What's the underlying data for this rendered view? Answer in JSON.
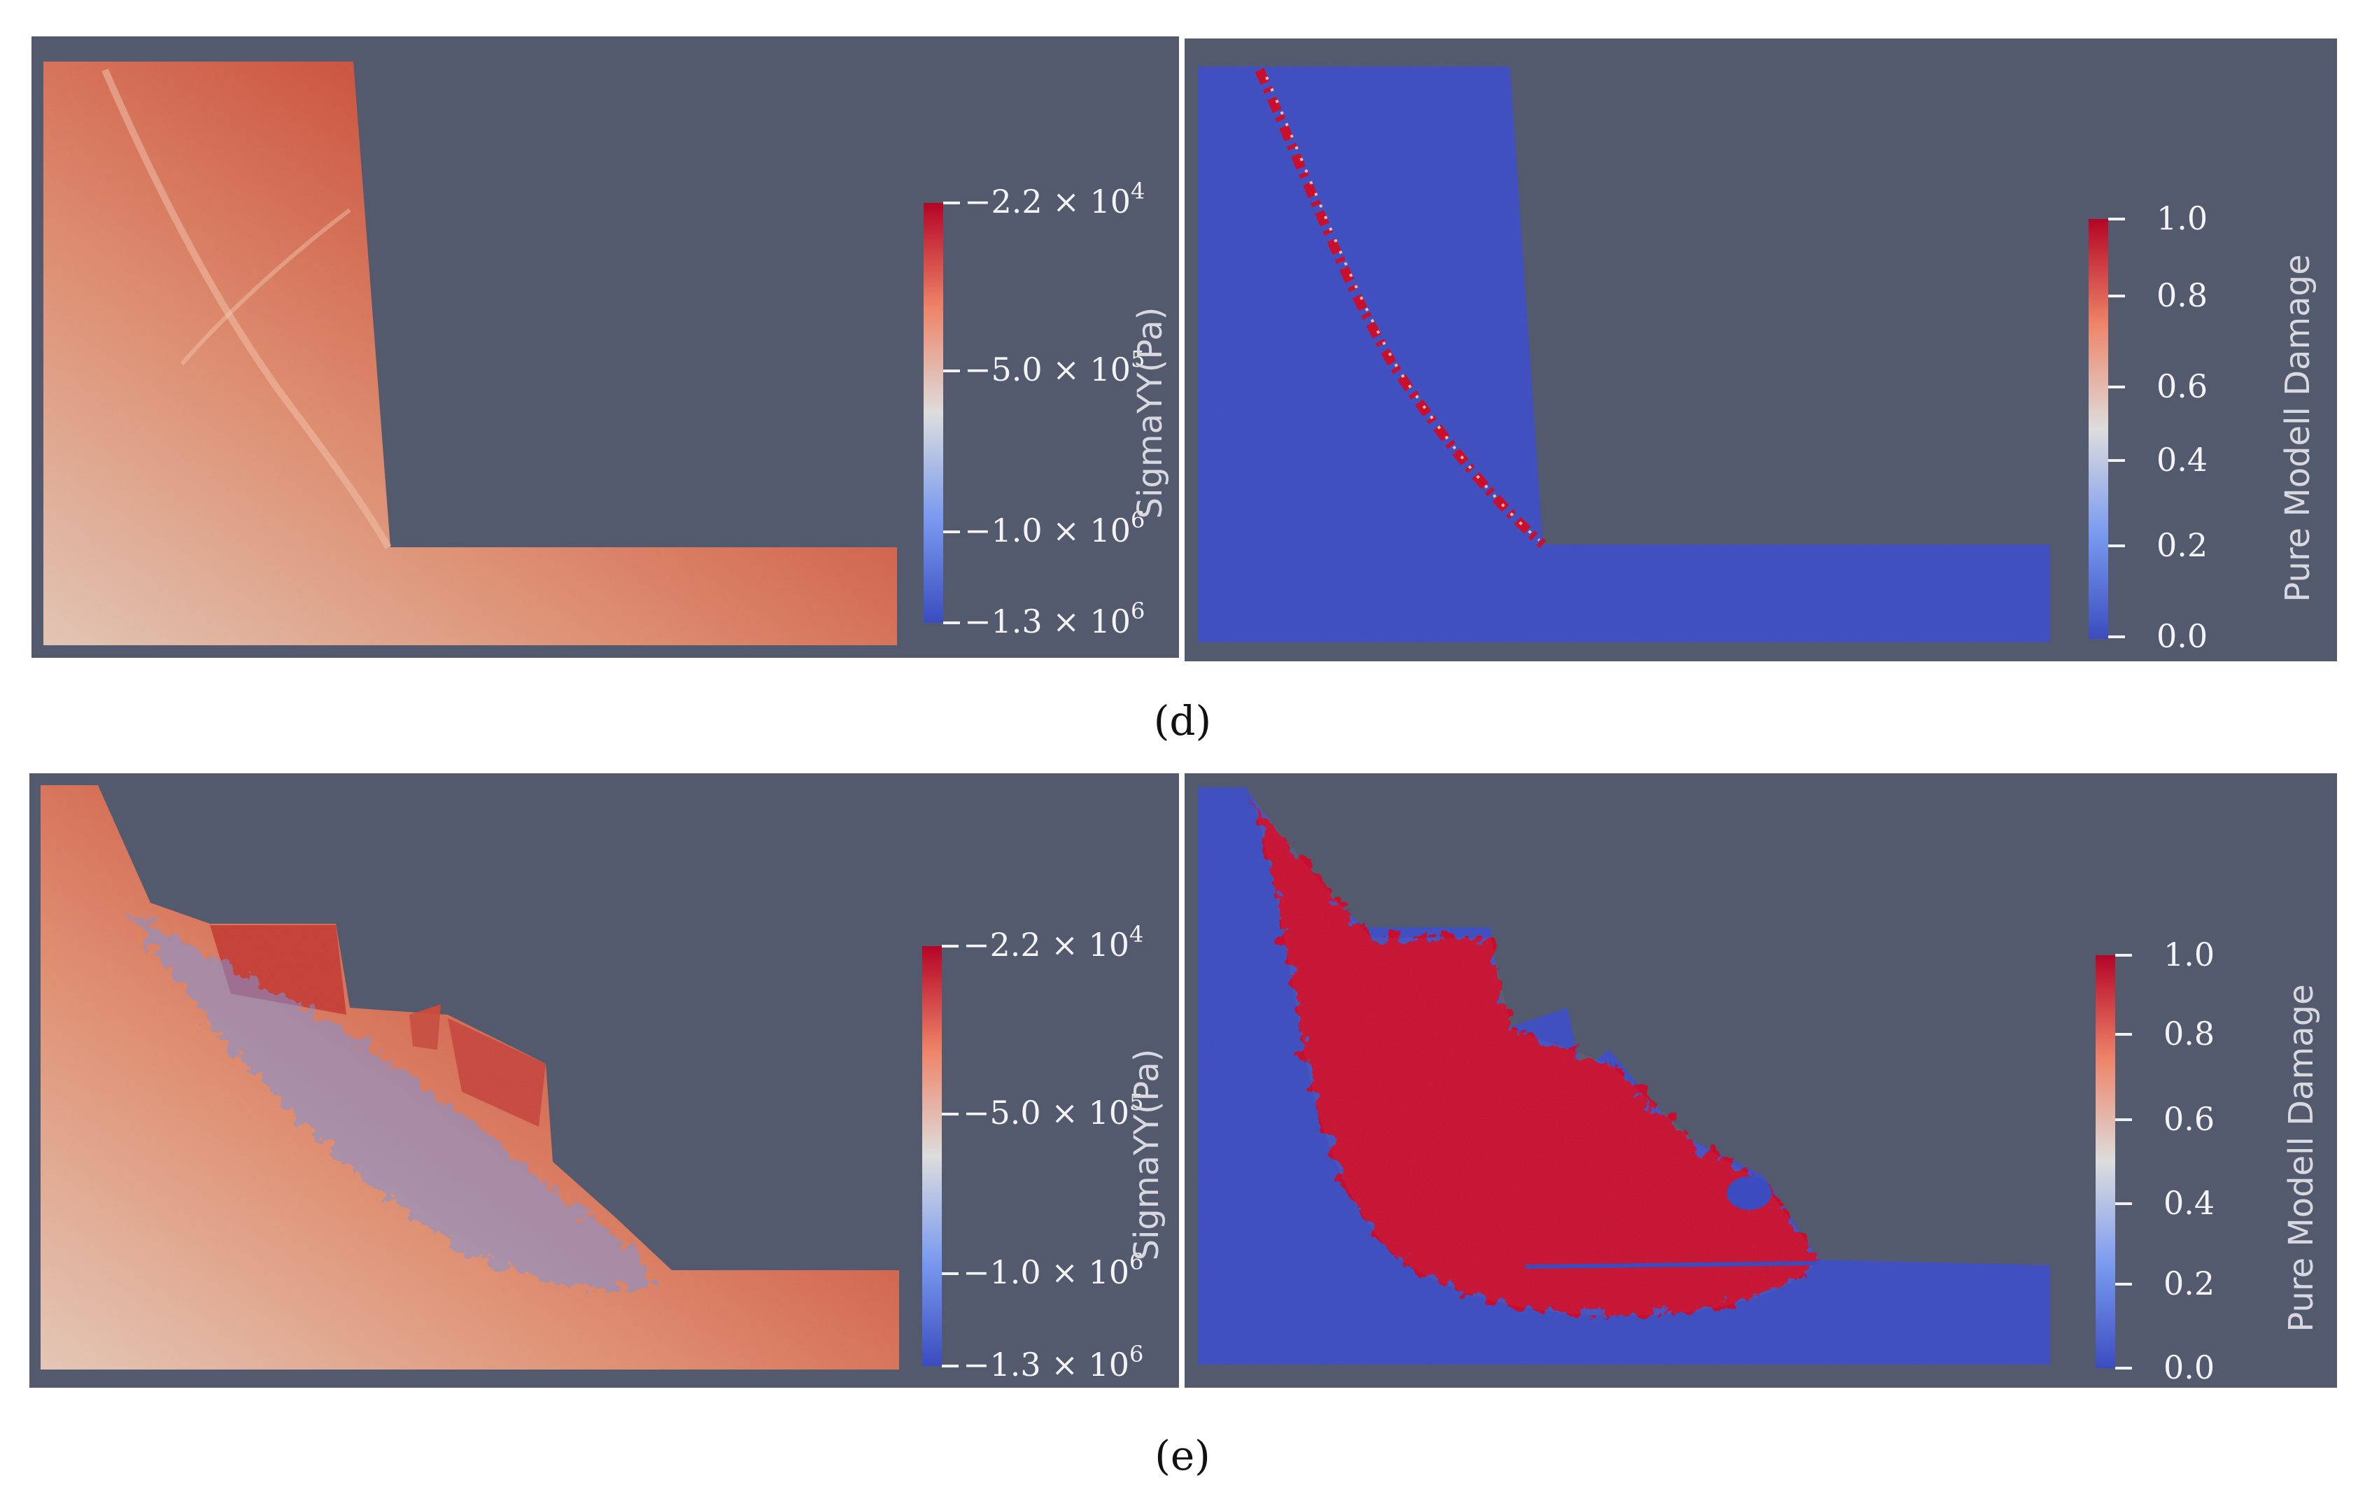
{
  "colors": {
    "viewport_background": "#545a6e",
    "colormap_low": "#3b4cc0",
    "colormap_mid": "#dddddd",
    "colormap_high": "#b40426"
  },
  "panels": [
    {
      "label": "(d)",
      "stress_view": {
        "colorbar_title": "SigmaYY(Pa)",
        "ticks": [
          {
            "mantissa": "−2.2",
            "times": " × 10",
            "exp": "4"
          },
          {
            "mantissa": "−5.0",
            "times": " × 10",
            "exp": "5"
          },
          {
            "mantissa": "−1.0",
            "times": " × 10",
            "exp": "6"
          },
          {
            "mantissa": "−1.3",
            "times": " × 10",
            "exp": "6"
          }
        ]
      },
      "damage_view": {
        "colorbar_title": "Pure Modell Damage",
        "ticks": [
          "1.0",
          "0.8",
          "0.6",
          "0.4",
          "0.2",
          "0.0"
        ]
      }
    },
    {
      "label": "(e)",
      "stress_view": {
        "colorbar_title": "SigmaYY(Pa)",
        "ticks": [
          {
            "mantissa": "−2.2",
            "times": " × 10",
            "exp": "4"
          },
          {
            "mantissa": "−5.0",
            "times": " × 10",
            "exp": "5"
          },
          {
            "mantissa": "−1.0",
            "times": " × 10",
            "exp": "6"
          },
          {
            "mantissa": "−1.3",
            "times": " × 10",
            "exp": "6"
          }
        ]
      },
      "damage_view": {
        "colorbar_title": "Pure Modell Damage",
        "ticks": [
          "1.0",
          "0.8",
          "0.6",
          "0.4",
          "0.2",
          "0.0"
        ]
      }
    }
  ]
}
